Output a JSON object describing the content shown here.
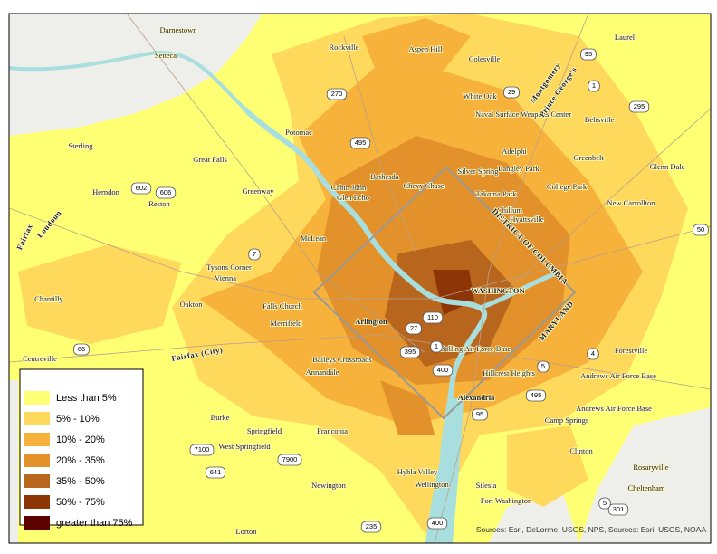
{
  "places": [
    "Darnestown",
    "Seneca",
    "Rockville",
    "Aspen Hill",
    "Colesville",
    "Laurel",
    "White Oak",
    "Naval Surface Weapons Center",
    "Beltsville",
    "Potomac",
    "Sterling",
    "Great Falls",
    "Adelphi",
    "Langley Park",
    "Greenbelt",
    "Glenn Dale",
    "Herndon",
    "Reston",
    "Greenway",
    "Bethesda",
    "Cabin John",
    "Glen Echo",
    "Chevy Chase",
    "Silver Spring",
    "Takoma Park",
    "College Park",
    "Chillum",
    "Hyattsville",
    "New Carrollton",
    "McLean",
    "Tysons Corner",
    "Vienna",
    "Chantilly",
    "Oakton",
    "Falls Church",
    "Merrifield",
    "Centreville",
    "Baileys Crossroads",
    "Annandale",
    "Bolling Air Force Base",
    "Hillcrest Heights",
    "Forestville",
    "Andrews Air Force Base",
    "Andrews Air Force Base",
    "Burke",
    "Springfield",
    "West Springfield",
    "Franconia",
    "Camp Springs",
    "Clinton",
    "Hybla Valley",
    "Wellington",
    "Newington",
    "Silesia",
    "Fort Washington",
    "Rosaryville",
    "Cheltenham",
    "Lorton"
  ],
  "major_places": {
    "arlington": "Arlington",
    "washington": "WASHINGTON",
    "alexandria": "Alexandria"
  },
  "boundaries": [
    "DISTRICT OF COLUMBIA",
    "MARYLAND",
    "Montgomery",
    "Prince George's",
    "Loudoun",
    "Fairfax",
    "Fairfax (City)"
  ],
  "routes": [
    "95",
    "1",
    "295",
    "270",
    "29",
    "495",
    "602",
    "606",
    "7",
    "50",
    "66",
    "27",
    "110",
    "395",
    "1",
    "400",
    "5",
    "4",
    "495",
    "95",
    "7100",
    "641",
    "7900",
    "235",
    "400",
    "301",
    "5"
  ],
  "legend": {
    "items": [
      {
        "label": "Less than 5%",
        "color": "#ffff73"
      },
      {
        "label": "5% - 10%",
        "color": "#fed95c"
      },
      {
        "label": "10% - 20%",
        "color": "#f7b23b"
      },
      {
        "label": "20% - 35%",
        "color": "#e3922b"
      },
      {
        "label": "35% - 50%",
        "color": "#b8661e"
      },
      {
        "label": "50% - 75%",
        "color": "#8e3508"
      },
      {
        "label": "greater than 75%",
        "color": "#5c0000"
      }
    ]
  },
  "source": "Sources: Esri, DeLorme, USGS, NPS, Sources: Esri, USGS, NOAA"
}
